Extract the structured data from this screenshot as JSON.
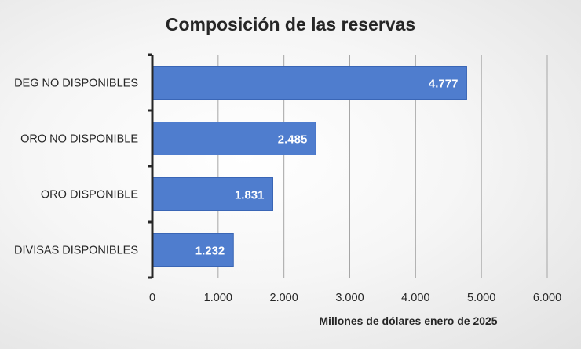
{
  "chart_data": {
    "type": "bar",
    "orientation": "horizontal",
    "title": "Composición de las reservas",
    "xlabel": "Millones de dólares enero de 2025",
    "ylabel": "",
    "categories": [
      "DEG NO DISPONIBLES",
      "ORO NO DISPONIBLE",
      "ORO DISPONIBLE",
      "DIVISAS DISPONIBLES"
    ],
    "values": [
      4777,
      2485,
      1831,
      1232
    ],
    "data_labels": [
      "4.777",
      "2.485",
      "1.831",
      "1.232"
    ],
    "xlim": [
      0,
      6000
    ],
    "xticks": [
      0,
      1000,
      2000,
      3000,
      4000,
      5000,
      6000
    ],
    "xtick_labels": [
      "0",
      "1.000",
      "2.000",
      "3.000",
      "4.000",
      "5.000",
      "6.000"
    ],
    "grid": true,
    "legend": "none",
    "bar_color": "#4f7dce",
    "bar_edge_color": "#3a66b6"
  }
}
